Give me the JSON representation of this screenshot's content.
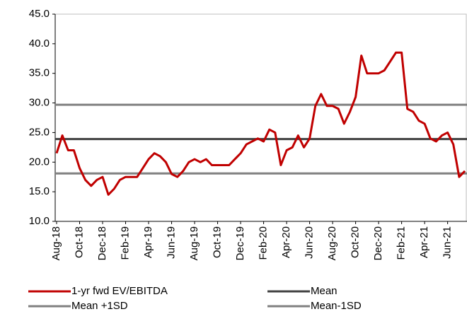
{
  "chart_data": {
    "type": "line",
    "categories": [
      "Aug-18",
      null,
      null,
      null,
      "Oct-18",
      null,
      null,
      null,
      "Dec-18",
      null,
      null,
      null,
      "Feb-19",
      null,
      null,
      null,
      "Apr-19",
      null,
      null,
      null,
      "Jun-19",
      null,
      null,
      null,
      "Aug-19",
      null,
      null,
      null,
      "Oct-19",
      null,
      null,
      null,
      "Dec-19",
      null,
      null,
      null,
      "Feb-20",
      null,
      null,
      null,
      "Apr-20",
      null,
      null,
      null,
      "Jun-20",
      null,
      null,
      null,
      "Aug-20",
      null,
      null,
      null,
      "Oct-20",
      null,
      null,
      null,
      "Dec-20",
      null,
      null,
      null,
      "Feb-21",
      null,
      null,
      null,
      "Apr-21",
      null,
      null,
      null,
      "Jun-21",
      null,
      null,
      null
    ],
    "series": [
      {
        "name": "1-yr fwd EV/EBITDA",
        "color": "#c00000",
        "values": [
          21.5,
          24.5,
          22,
          22,
          19,
          17,
          16,
          17,
          17.5,
          14.5,
          15.5,
          17,
          17.5,
          17.5,
          17.5,
          19,
          20.5,
          21.5,
          21,
          20,
          18,
          17.5,
          18.5,
          20,
          20.5,
          20,
          20.5,
          19.5,
          19.5,
          19.5,
          19.5,
          20.5,
          21.5,
          23,
          23.5,
          24,
          23.5,
          25.5,
          25,
          19.5,
          22,
          22.5,
          24.5,
          22.5,
          24,
          29.5,
          31.5,
          29.5,
          29.5,
          29,
          26.5,
          28.5,
          31,
          38,
          35,
          35,
          35,
          35.5,
          37,
          38.5,
          38.5,
          29,
          28.5,
          27,
          26.5,
          24,
          23.5,
          24.5,
          25,
          23,
          17.5,
          18.5
        ]
      }
    ],
    "reference_lines": [
      {
        "name": "Mean",
        "color": "#404040",
        "value": 23.9
      },
      {
        "name": "Mean +1SD",
        "color": "#808080",
        "value": 29.7
      },
      {
        "name": "Mean-1SD",
        "color": "#808080",
        "value": 18.1
      }
    ],
    "ylim": [
      10,
      45
    ],
    "yticks": [
      {
        "value": 10,
        "label": "10.0"
      },
      {
        "value": 15,
        "label": "15.0"
      },
      {
        "value": 20,
        "label": "20.0"
      },
      {
        "value": 25,
        "label": "25.0"
      },
      {
        "value": 30,
        "label": "30.0"
      },
      {
        "value": 35,
        "label": "35.0"
      },
      {
        "value": 40,
        "label": "40.0"
      },
      {
        "value": 45,
        "label": "45.0"
      }
    ],
    "grid": false,
    "legend": "bottom"
  }
}
